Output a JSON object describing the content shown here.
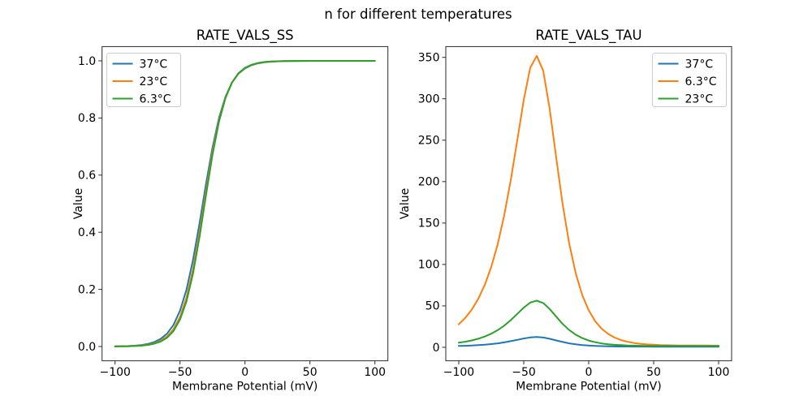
{
  "figure": {
    "title": "n for different temperatures",
    "background": "#ffffff"
  },
  "palette": {
    "blue": "#1f77b4",
    "orange": "#ff7f0e",
    "green": "#2ca02c"
  },
  "chart_data": [
    {
      "type": "line",
      "title": "RATE_VALS_SS",
      "xlabel": "Membrane Potential (mV)",
      "ylabel": "Value",
      "xlim": [
        -110,
        110
      ],
      "ylim": [
        -0.05,
        1.05
      ],
      "grid": false,
      "legend_position": "upper-left",
      "xticks": [
        -100,
        -50,
        0,
        50,
        100
      ],
      "xtick_labels": [
        "−100",
        "−50",
        "0",
        "50",
        "100"
      ],
      "yticks": [
        0,
        0.2,
        0.4,
        0.6,
        0.8,
        1.0
      ],
      "ytick_labels": [
        "0.0",
        "0.2",
        "0.4",
        "0.6",
        "0.8",
        "1.0"
      ],
      "x": [
        -100,
        -95,
        -90,
        -85,
        -80,
        -75,
        -70,
        -65,
        -60,
        -55,
        -50,
        -45,
        -40,
        -35,
        -30,
        -25,
        -20,
        -15,
        -10,
        -5,
        0,
        5,
        10,
        15,
        20,
        25,
        30,
        35,
        40,
        45,
        50,
        55,
        60,
        65,
        70,
        75,
        80,
        85,
        90,
        95,
        100
      ],
      "series": [
        {
          "name": "37°C",
          "color": "#1f77b4",
          "values": [
            0.0006,
            0.001,
            0.0017,
            0.0029,
            0.005,
            0.0088,
            0.0152,
            0.0263,
            0.0449,
            0.0759,
            0.1257,
            0.1994,
            0.3034,
            0.4308,
            0.5692,
            0.6966,
            0.8006,
            0.8743,
            0.9241,
            0.9551,
            0.9737,
            0.9848,
            0.9912,
            0.9949,
            0.9971,
            0.9983,
            0.999,
            0.9994,
            0.9997,
            0.9998,
            0.9999,
            0.9999,
            0.9999,
            1,
            1,
            1,
            1,
            1,
            1,
            1,
            1
          ]
        },
        {
          "name": "23°C",
          "color": "#ff7f0e",
          "values": [
            0.0003,
            0.0006,
            0.0011,
            0.002,
            0.0036,
            0.0063,
            0.0112,
            0.0199,
            0.0352,
            0.0612,
            0.1043,
            0.1723,
            0.2709,
            0.3994,
            0.5435,
            0.6806,
            0.7924,
            0.8721,
            0.9241,
            0.9561,
            0.9749,
            0.9858,
            0.9921,
            0.9956,
            0.9975,
            0.9986,
            0.9992,
            0.9996,
            0.9998,
            0.9999,
            0.9999,
            1,
            1,
            1,
            1,
            1,
            1,
            1,
            1,
            1,
            1
          ]
        },
        {
          "name": "6.3°C",
          "color": "#2ca02c",
          "values": [
            0.0003,
            0.0005,
            0.0009,
            0.0016,
            0.0029,
            0.0053,
            0.0096,
            0.0171,
            0.0308,
            0.0542,
            0.0943,
            0.1585,
            0.2554,
            0.3832,
            0.5297,
            0.6712,
            0.7874,
            0.8701,
            0.9241,
            0.9569,
            0.9756,
            0.9865,
            0.9925,
            0.9959,
            0.9977,
            0.9987,
            0.9993,
            0.9996,
            0.9998,
            0.9999,
            0.9999,
            1,
            1,
            1,
            1,
            1,
            1,
            1,
            1,
            1,
            1
          ]
        }
      ]
    },
    {
      "type": "line",
      "title": "RATE_VALS_TAU",
      "xlabel": "Membrane Potential (mV)",
      "ylabel": "Value",
      "xlim": [
        -110,
        110
      ],
      "ylim": [
        -16.3,
        363
      ],
      "grid": false,
      "legend_position": "upper-right",
      "xticks": [
        -100,
        -50,
        0,
        50,
        100
      ],
      "xtick_labels": [
        "−100",
        "−50",
        "0",
        "50",
        "100"
      ],
      "yticks": [
        0,
        50,
        100,
        150,
        200,
        250,
        300,
        350
      ],
      "ytick_labels": [
        "0",
        "50",
        "100",
        "150",
        "200",
        "250",
        "300",
        "350"
      ],
      "x": [
        -100,
        -95,
        -90,
        -85,
        -80,
        -75,
        -70,
        -65,
        -60,
        -55,
        -50,
        -45,
        -40,
        -35,
        -30,
        -25,
        -20,
        -15,
        -10,
        -5,
        0,
        5,
        10,
        15,
        20,
        25,
        30,
        35,
        40,
        45,
        50,
        55,
        60,
        65,
        70,
        75,
        80,
        85,
        90,
        95,
        100
      ],
      "series": [
        {
          "name": "37°C",
          "color": "#1f77b4",
          "values": [
            1.6,
            1.8,
            2.1,
            2.6,
            3.1,
            3.9,
            4.8,
            5.9,
            7.4,
            9,
            10.6,
            11.9,
            12.4,
            11.8,
            10.2,
            8.3,
            6.4,
            4.8,
            3.6,
            2.7,
            2.1,
            1.7,
            1.4,
            1.2,
            1,
            0.9,
            0.9,
            0.8,
            0.8,
            0.8,
            0.7,
            0.7,
            0.7,
            0.7,
            0.7,
            0.7,
            0.7,
            0.7,
            0.7,
            0.7,
            0.7
          ]
        },
        {
          "name": "6.3°C",
          "color": "#ff7f0e",
          "values": [
            27.7,
            35.5,
            45.5,
            58.5,
            75.3,
            97,
            124.7,
            159.5,
            201.7,
            249.7,
            298.5,
            337.3,
            351.8,
            333.8,
            287.5,
            228.8,
            172.2,
            125.2,
            89.4,
            63.1,
            44.6,
            31.5,
            22.4,
            16.1,
            11.7,
            8.7,
            6.6,
            5.2,
            4.2,
            3.5,
            3.1,
            2.7,
            2.5,
            2.3,
            2.2,
            2.2,
            2.1,
            2.1,
            2.1,
            2,
            2
          ]
        },
        {
          "name": "23°C",
          "color": "#2ca02c",
          "values": [
            5.5,
            6.7,
            8.3,
            10.3,
            13,
            16.4,
            20.7,
            26.1,
            32.8,
            40.3,
            47.9,
            54,
            56.3,
            53.4,
            46.2,
            37,
            28.1,
            20.8,
            15.2,
            11.1,
            8.2,
            6.1,
            4.7,
            3.7,
            3,
            2.6,
            2.2,
            2,
            1.8,
            1.7,
            1.7,
            1.6,
            1.6,
            1.6,
            1.5,
            1.5,
            1.5,
            1.5,
            1.5,
            1.5,
            1.5
          ]
        }
      ]
    }
  ]
}
